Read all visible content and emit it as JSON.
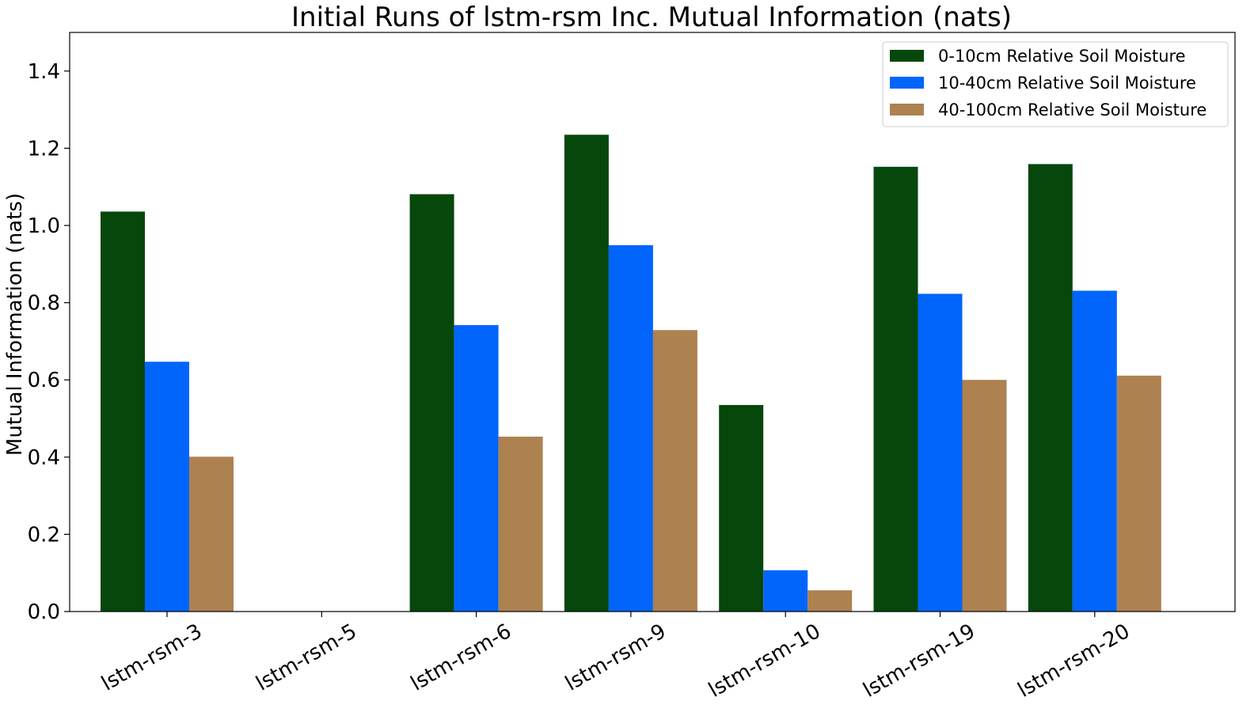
{
  "chart_data": {
    "type": "bar",
    "title": "Initial Runs of lstm-rsm Inc. Mutual Information (nats)",
    "xlabel": "",
    "ylabel": "Mutual Information (nats)",
    "ylim": [
      0,
      1.5
    ],
    "yticks": [
      0.0,
      0.2,
      0.4,
      0.6,
      0.8,
      1.0,
      1.2,
      1.4
    ],
    "ytick_labels": [
      "0.0",
      "0.2",
      "0.4",
      "0.6",
      "0.8",
      "1.0",
      "1.2",
      "1.4"
    ],
    "categories": [
      "lstm-rsm-3",
      "lstm-rsm-5",
      "lstm-rsm-6",
      "lstm-rsm-9",
      "lstm-rsm-10",
      "lstm-rsm-19",
      "lstm-rsm-20"
    ],
    "series": [
      {
        "name": "0-10cm Relative Soil Moisture",
        "color": "#06470c",
        "values": [
          1.036,
          0.0,
          1.081,
          1.235,
          0.535,
          1.152,
          1.159
        ]
      },
      {
        "name": "10-40cm Relative Soil Moisture",
        "color": "#0165fc",
        "values": [
          0.647,
          0.0,
          0.742,
          0.949,
          0.107,
          0.823,
          0.831
        ]
      },
      {
        "name": "40-100cm Relative Soil Moisture",
        "color": "#ad8150",
        "values": [
          0.401,
          0.0,
          0.453,
          0.729,
          0.055,
          0.6,
          0.611
        ]
      }
    ],
    "legend_position": "top-right",
    "grid": false
  }
}
